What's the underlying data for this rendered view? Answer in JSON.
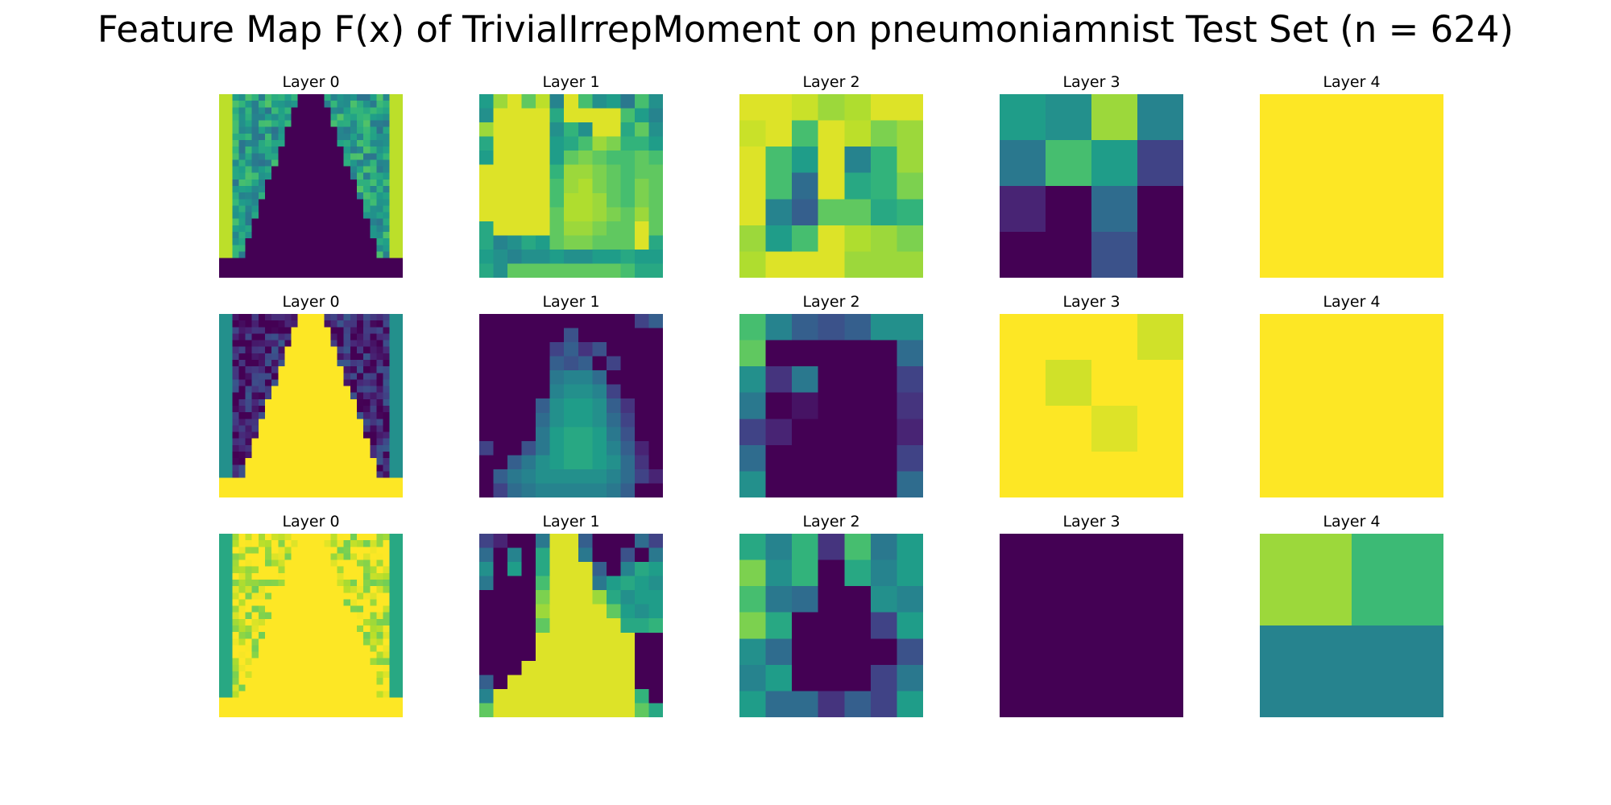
{
  "chart_data": {
    "type": "heatmap",
    "title": "Feature Map F(x) of TrivialIrrepMoment on pneumoniamnist Test Set (n = 624)",
    "colormap": "viridis",
    "value_range": [
      0,
      1
    ],
    "rows": [
      {
        "panels": [
          {
            "title": "Layer 0",
            "pattern": "lungs",
            "params": {
              "inner": 0.0,
              "outer": 0.55,
              "rim": 0.9,
              "bottom": 0.0,
              "seed": 1
            }
          },
          {
            "title": "Layer 1",
            "grid": [
              [
                0.55,
                0.85,
                0.95,
                0.75,
                0.9,
                0.45,
                0.95,
                0.7,
                0.5,
                0.55,
                0.4,
                0.7,
                0.5
              ],
              [
                0.5,
                0.95,
                0.95,
                0.95,
                0.95,
                0.6,
                0.95,
                0.95,
                0.95,
                0.95,
                0.7,
                0.55,
                0.45
              ],
              [
                0.85,
                0.95,
                0.95,
                0.95,
                0.95,
                0.5,
                0.65,
                0.5,
                0.95,
                0.95,
                0.6,
                0.75,
                0.5
              ],
              [
                0.6,
                0.95,
                0.95,
                0.95,
                0.95,
                0.55,
                0.6,
                0.7,
                0.85,
                0.8,
                0.65,
                0.65,
                0.55
              ],
              [
                0.55,
                0.95,
                0.95,
                0.95,
                0.95,
                0.55,
                0.75,
                0.8,
                0.75,
                0.7,
                0.7,
                0.75,
                0.7
              ],
              [
                0.95,
                0.95,
                0.95,
                0.95,
                0.95,
                0.65,
                0.85,
                0.85,
                0.8,
                0.75,
                0.7,
                0.75,
                0.75
              ],
              [
                0.95,
                0.95,
                0.95,
                0.95,
                0.95,
                0.7,
                0.85,
                0.88,
                0.8,
                0.75,
                0.7,
                0.8,
                0.75
              ],
              [
                0.95,
                0.95,
                0.95,
                0.95,
                0.95,
                0.7,
                0.88,
                0.88,
                0.85,
                0.75,
                0.7,
                0.8,
                0.75
              ],
              [
                0.95,
                0.95,
                0.95,
                0.95,
                0.95,
                0.75,
                0.88,
                0.88,
                0.85,
                0.8,
                0.75,
                0.85,
                0.75
              ],
              [
                0.6,
                0.95,
                0.95,
                0.95,
                0.95,
                0.75,
                0.85,
                0.85,
                0.8,
                0.75,
                0.75,
                0.95,
                0.75
              ],
              [
                0.6,
                0.45,
                0.5,
                0.6,
                0.55,
                0.75,
                0.8,
                0.8,
                0.75,
                0.75,
                0.75,
                0.95,
                0.6
              ],
              [
                0.55,
                0.5,
                0.45,
                0.5,
                0.5,
                0.55,
                0.5,
                0.5,
                0.55,
                0.55,
                0.6,
                0.55,
                0.55
              ],
              [
                0.6,
                0.5,
                0.75,
                0.75,
                0.75,
                0.75,
                0.75,
                0.75,
                0.75,
                0.75,
                0.7,
                0.6,
                0.6
              ]
            ]
          },
          {
            "title": "Layer 2",
            "grid": [
              [
                0.95,
                0.95,
                0.92,
                0.85,
                0.88,
                0.95,
                0.95
              ],
              [
                0.92,
                0.95,
                0.7,
                0.95,
                0.9,
                0.8,
                0.85
              ],
              [
                0.95,
                0.7,
                0.55,
                0.95,
                0.45,
                0.65,
                0.85
              ],
              [
                0.95,
                0.7,
                0.35,
                0.95,
                0.6,
                0.65,
                0.8
              ],
              [
                0.95,
                0.45,
                0.3,
                0.75,
                0.75,
                0.6,
                0.65
              ],
              [
                0.85,
                0.55,
                0.7,
                0.95,
                0.88,
                0.85,
                0.8
              ],
              [
                0.88,
                0.95,
                0.95,
                0.95,
                0.85,
                0.85,
                0.85
              ]
            ]
          },
          {
            "title": "Layer 3",
            "grid": [
              [
                0.55,
                0.5,
                0.85,
                0.45
              ],
              [
                0.4,
                0.7,
                0.55,
                0.2
              ],
              [
                0.1,
                0.0,
                0.35,
                0.0
              ],
              [
                0.0,
                0.0,
                0.25,
                0.0
              ]
            ]
          },
          {
            "title": "Layer 4",
            "grid": [
              [
                1.0
              ]
            ]
          }
        ]
      },
      {
        "panels": [
          {
            "title": "Layer 0",
            "pattern": "lungs",
            "params": {
              "inner": 1.0,
              "outer": 0.1,
              "rim": 0.5,
              "bottom": 1.0,
              "seed": 2
            }
          },
          {
            "title": "Layer 1",
            "grid": [
              [
                0.0,
                0.0,
                0.0,
                0.0,
                0.0,
                0.0,
                0.0,
                0.0,
                0.0,
                0.0,
                0.0,
                0.2,
                0.3
              ],
              [
                0.0,
                0.0,
                0.0,
                0.0,
                0.0,
                0.0,
                0.25,
                0.0,
                0.0,
                0.0,
                0.0,
                0.0,
                0.0
              ],
              [
                0.0,
                0.0,
                0.0,
                0.0,
                0.0,
                0.2,
                0.3,
                0.15,
                0.25,
                0.0,
                0.0,
                0.0,
                0.0
              ],
              [
                0.0,
                0.0,
                0.0,
                0.0,
                0.0,
                0.3,
                0.25,
                0.3,
                0.0,
                0.2,
                0.0,
                0.0,
                0.0
              ],
              [
                0.0,
                0.0,
                0.0,
                0.0,
                0.0,
                0.4,
                0.45,
                0.45,
                0.35,
                0.0,
                0.0,
                0.0,
                0.0
              ],
              [
                0.0,
                0.0,
                0.0,
                0.0,
                0.0,
                0.45,
                0.5,
                0.5,
                0.45,
                0.2,
                0.0,
                0.0,
                0.0
              ],
              [
                0.0,
                0.0,
                0.0,
                0.0,
                0.3,
                0.5,
                0.55,
                0.55,
                0.5,
                0.3,
                0.15,
                0.0,
                0.0
              ],
              [
                0.0,
                0.0,
                0.0,
                0.0,
                0.35,
                0.5,
                0.55,
                0.55,
                0.5,
                0.35,
                0.2,
                0.0,
                0.0
              ],
              [
                0.0,
                0.0,
                0.0,
                0.0,
                0.4,
                0.55,
                0.6,
                0.6,
                0.55,
                0.4,
                0.25,
                0.0,
                0.0
              ],
              [
                0.2,
                0.0,
                0.0,
                0.25,
                0.4,
                0.55,
                0.6,
                0.6,
                0.55,
                0.45,
                0.3,
                0.1,
                0.0
              ],
              [
                0.0,
                0.0,
                0.3,
                0.4,
                0.5,
                0.55,
                0.6,
                0.6,
                0.55,
                0.5,
                0.35,
                0.15,
                0.0
              ],
              [
                0.0,
                0.3,
                0.4,
                0.45,
                0.5,
                0.5,
                0.5,
                0.5,
                0.5,
                0.45,
                0.35,
                0.2,
                0.1
              ],
              [
                0.0,
                0.2,
                0.35,
                0.4,
                0.45,
                0.45,
                0.45,
                0.45,
                0.45,
                0.4,
                0.3,
                0.0,
                0.0
              ]
            ]
          },
          {
            "title": "Layer 2",
            "grid": [
              [
                0.7,
                0.45,
                0.3,
                0.25,
                0.3,
                0.5,
                0.5
              ],
              [
                0.75,
                0.0,
                0.0,
                0.0,
                0.0,
                0.0,
                0.35
              ],
              [
                0.5,
                0.15,
                0.4,
                0.0,
                0.0,
                0.0,
                0.2
              ],
              [
                0.4,
                0.0,
                0.05,
                0.0,
                0.0,
                0.0,
                0.15
              ],
              [
                0.2,
                0.1,
                0.0,
                0.0,
                0.0,
                0.0,
                0.1
              ],
              [
                0.35,
                0.0,
                0.0,
                0.0,
                0.0,
                0.0,
                0.2
              ],
              [
                0.5,
                0.0,
                0.0,
                0.0,
                0.0,
                0.0,
                0.35
              ]
            ]
          },
          {
            "title": "Layer 3",
            "grid": [
              [
                1.0,
                1.0,
                1.0,
                0.93
              ],
              [
                1.0,
                0.93,
                1.0,
                1.0
              ],
              [
                1.0,
                1.0,
                0.95,
                1.0
              ],
              [
                1.0,
                1.0,
                1.0,
                1.0
              ]
            ]
          },
          {
            "title": "Layer 4",
            "grid": [
              [
                1.0
              ]
            ]
          }
        ]
      },
      {
        "panels": [
          {
            "title": "Layer 0",
            "pattern": "lungs",
            "params": {
              "inner": 1.0,
              "outer": 0.95,
              "rim": 0.6,
              "bottom": 1.0,
              "seed": 3
            }
          },
          {
            "title": "Layer 1",
            "grid": [
              [
                0.2,
                0.1,
                0.0,
                0.0,
                0.4,
                0.95,
                0.95,
                0.3,
                0.0,
                0.0,
                0.0,
                0.35,
                0.2
              ],
              [
                0.35,
                0.0,
                0.45,
                0.0,
                0.6,
                0.95,
                0.95,
                0.4,
                0.0,
                0.0,
                0.25,
                0.0,
                0.4
              ],
              [
                0.5,
                0.0,
                0.55,
                0.0,
                0.6,
                0.95,
                0.95,
                0.95,
                0.3,
                0.0,
                0.45,
                0.6,
                0.55
              ],
              [
                0.4,
                0.0,
                0.0,
                0.0,
                0.7,
                0.95,
                0.95,
                0.95,
                0.4,
                0.55,
                0.6,
                0.55,
                0.5
              ],
              [
                0.0,
                0.0,
                0.0,
                0.0,
                0.8,
                0.95,
                0.95,
                0.95,
                0.85,
                0.6,
                0.5,
                0.55,
                0.55
              ],
              [
                0.0,
                0.0,
                0.0,
                0.0,
                0.85,
                0.95,
                0.95,
                0.95,
                0.95,
                0.75,
                0.55,
                0.5,
                0.55
              ],
              [
                0.0,
                0.0,
                0.0,
                0.0,
                0.75,
                0.95,
                0.95,
                0.95,
                0.95,
                0.95,
                0.6,
                0.6,
                0.65
              ],
              [
                0.0,
                0.0,
                0.0,
                0.0,
                0.95,
                0.95,
                0.95,
                0.95,
                0.95,
                0.95,
                0.95,
                0.0,
                0.0
              ],
              [
                0.0,
                0.0,
                0.0,
                0.0,
                0.95,
                0.95,
                0.95,
                0.95,
                0.95,
                0.95,
                0.95,
                0.0,
                0.0
              ],
              [
                0.0,
                0.0,
                0.0,
                0.95,
                0.95,
                0.95,
                0.95,
                0.95,
                0.95,
                0.95,
                0.95,
                0.0,
                0.0
              ],
              [
                0.3,
                0.0,
                0.95,
                0.95,
                0.95,
                0.95,
                0.95,
                0.95,
                0.95,
                0.95,
                0.95,
                0.0,
                0.0
              ],
              [
                0.45,
                0.95,
                0.95,
                0.95,
                0.95,
                0.95,
                0.95,
                0.95,
                0.95,
                0.95,
                0.95,
                0.65,
                0.0
              ],
              [
                0.75,
                0.95,
                0.95,
                0.95,
                0.95,
                0.95,
                0.95,
                0.95,
                0.95,
                0.95,
                0.95,
                0.75,
                0.6
              ]
            ]
          },
          {
            "title": "Layer 2",
            "grid": [
              [
                0.6,
                0.45,
                0.65,
                0.15,
                0.7,
                0.4,
                0.55
              ],
              [
                0.8,
                0.5,
                0.65,
                0.0,
                0.6,
                0.45,
                0.55
              ],
              [
                0.7,
                0.4,
                0.35,
                0.0,
                0.0,
                0.5,
                0.45
              ],
              [
                0.8,
                0.6,
                0.0,
                0.0,
                0.0,
                0.2,
                0.55
              ],
              [
                0.5,
                0.35,
                0.0,
                0.0,
                0.0,
                0.0,
                0.25
              ],
              [
                0.45,
                0.55,
                0.0,
                0.0,
                0.0,
                0.2,
                0.4
              ],
              [
                0.55,
                0.35,
                0.35,
                0.15,
                0.3,
                0.2,
                0.55
              ]
            ]
          },
          {
            "title": "Layer 3",
            "grid": [
              [
                0.0
              ]
            ]
          },
          {
            "title": "Layer 4",
            "grid": [
              [
                0.85,
                0.68
              ],
              [
                0.45,
                0.45
              ]
            ]
          }
        ]
      }
    ]
  }
}
